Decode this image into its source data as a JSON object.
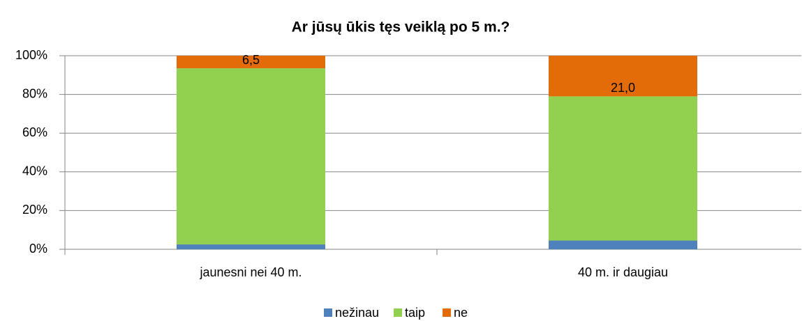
{
  "chart_data": {
    "type": "stacked_bar",
    "title": "Ar jūsų ūkis tęs veiklą po 5 m.?",
    "categories": [
      "jaunesni nei 40 m.",
      "40 m. ir daugiau"
    ],
    "series": [
      {
        "name": "nežinau",
        "color": "#4f81bd",
        "values": [
          2.5,
          4.5
        ]
      },
      {
        "name": "taip",
        "color": "#92d050",
        "values": [
          91,
          74.5
        ]
      },
      {
        "name": "ne",
        "color": "#e36c09",
        "values": [
          6.5,
          21.0
        ],
        "value_labels": [
          "6,5",
          "21,0"
        ]
      }
    ],
    "ylim": [
      0,
      100
    ],
    "yticks": [
      {
        "value": 0,
        "label": "0%"
      },
      {
        "value": 20,
        "label": "20%"
      },
      {
        "value": 40,
        "label": "40%"
      },
      {
        "value": 60,
        "label": "60%"
      },
      {
        "value": 80,
        "label": "80%"
      },
      {
        "value": 100,
        "label": "100%"
      }
    ],
    "grid": true,
    "legend": "bottom"
  }
}
